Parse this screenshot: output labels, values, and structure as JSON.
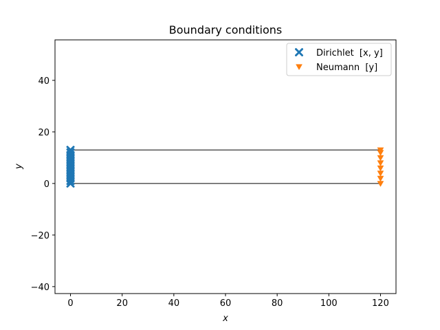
{
  "chart_data": {
    "type": "scatter",
    "title": "Boundary conditions",
    "xlabel": "x",
    "ylabel": "y",
    "xlim": [
      -6,
      126
    ],
    "ylim": [
      -42.7,
      55.7
    ],
    "xticks": [
      0,
      20,
      40,
      60,
      80,
      100,
      120
    ],
    "yticks": [
      -40,
      -20,
      0,
      20,
      40
    ],
    "grid": false,
    "legend_position": "top-right",
    "mesh_lines": [
      {
        "x": [
          0,
          120
        ],
        "y": [
          13,
          13
        ]
      },
      {
        "x": [
          0,
          120
        ],
        "y": [
          0,
          0
        ]
      }
    ],
    "series": [
      {
        "name": "Dirichlet  [x, y]",
        "marker": "x-filled",
        "color": "#1f77b4",
        "x": [
          0,
          0,
          0,
          0,
          0,
          0,
          0,
          0,
          0,
          0,
          0,
          0,
          0,
          0
        ],
        "y": [
          0,
          1,
          2,
          3,
          4,
          5,
          6,
          7,
          8,
          9,
          10,
          11,
          12,
          13
        ]
      },
      {
        "name": "Neumann  [y]",
        "marker": "triangle-down",
        "color": "#ff7f0e",
        "x": [
          120,
          120,
          120,
          120,
          120,
          120,
          120,
          120
        ],
        "y": [
          0,
          2,
          4,
          6,
          8,
          10,
          12,
          13
        ]
      }
    ]
  }
}
